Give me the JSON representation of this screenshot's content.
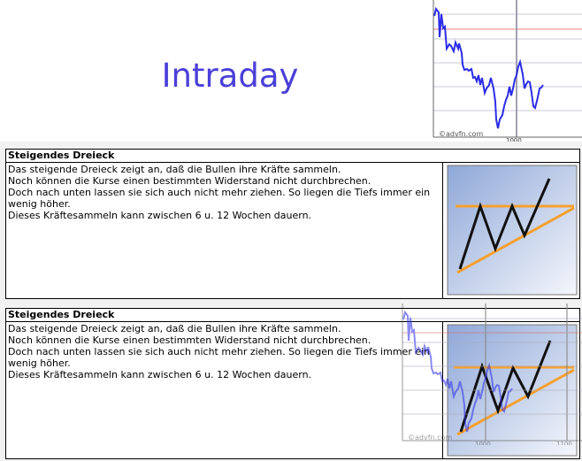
{
  "header": {
    "title": "Intraday"
  },
  "intraday_chart": {
    "x_tick": "1000",
    "watermark": "©advfn.com",
    "line_color": "#2b2be8",
    "reference_line_color": "#e88080"
  },
  "sections": [
    {
      "title": "Steigendes Dreieck",
      "lines": [
        "Das steigende Dreieck zeigt an, daß die Bullen ihre Kräfte sammeln.",
        "Noch können die Kurse einen bestimmten Widerstand nicht durchbrechen.",
        "Doch nach unten lassen sie sich auch nicht mehr ziehen. So liegen die Tiefs immer ein wenig höher.",
        "Dieses Kräftesammeln kann zwischen 6 u. 12 Wochen dauern."
      ]
    },
    {
      "title": "Steigendes Dreieck",
      "lines": [
        "Das steigende Dreieck zeigt an, daß die Bullen ihre Kräfte sammeln.",
        "Noch können die Kurse einen bestimmten Widerstand nicht durchbrechen.",
        "Doch nach unten lassen sie sich auch nicht mehr ziehen. So liegen die Tiefs immer ein wenig höher.",
        "Dieses Kräftesammeln kann zwischen 6 u. 12 Wochen dauern."
      ]
    }
  ],
  "overlay_chart": {
    "x_ticks": [
      "1000",
      "1100"
    ],
    "watermark": "©advfn.com"
  }
}
